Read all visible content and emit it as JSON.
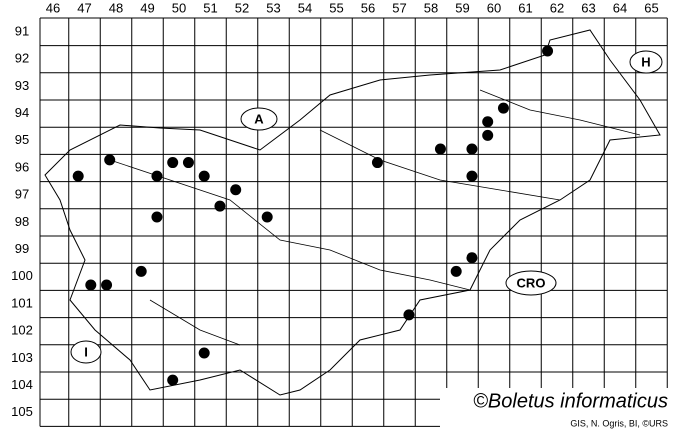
{
  "columns": [
    46,
    47,
    48,
    49,
    50,
    51,
    52,
    53,
    54,
    55,
    56,
    57,
    58,
    59,
    60,
    61,
    62,
    63,
    64,
    65
  ],
  "rows": [
    91,
    92,
    93,
    94,
    95,
    96,
    97,
    98,
    99,
    100,
    101,
    102,
    103,
    104,
    105
  ],
  "countries": {
    "austria": "A",
    "hungary": "H",
    "croatia": "CRO",
    "italy": "I"
  },
  "copyright": "©Boletus informaticus",
  "credit": "GIS, N. Ogris, BI, ©URS",
  "points": [
    {
      "col": 61.7,
      "row": 91.7
    },
    {
      "col": 60.3,
      "row": 93.8
    },
    {
      "col": 59.8,
      "row": 94.3
    },
    {
      "col": 59.8,
      "row": 94.8
    },
    {
      "col": 59.3,
      "row": 95.3
    },
    {
      "col": 58.3,
      "row": 95.3
    },
    {
      "col": 59.3,
      "row": 96.3
    },
    {
      "col": 56.3,
      "row": 95.8
    },
    {
      "col": 47.8,
      "row": 95.7
    },
    {
      "col": 46.8,
      "row": 96.3
    },
    {
      "col": 49.8,
      "row": 95.8
    },
    {
      "col": 50.3,
      "row": 95.8
    },
    {
      "col": 49.3,
      "row": 96.3
    },
    {
      "col": 50.8,
      "row": 96.3
    },
    {
      "col": 51.8,
      "row": 96.8
    },
    {
      "col": 51.3,
      "row": 97.4
    },
    {
      "col": 52.8,
      "row": 97.8
    },
    {
      "col": 49.3,
      "row": 97.8
    },
    {
      "col": 59.3,
      "row": 99.3
    },
    {
      "col": 58.8,
      "row": 99.8
    },
    {
      "col": 48.8,
      "row": 99.8
    },
    {
      "col": 47.2,
      "row": 100.3
    },
    {
      "col": 47.7,
      "row": 100.3
    },
    {
      "col": 57.3,
      "row": 101.4
    },
    {
      "col": 50.8,
      "row": 102.8
    },
    {
      "col": 49.8,
      "row": 103.8
    }
  ]
}
